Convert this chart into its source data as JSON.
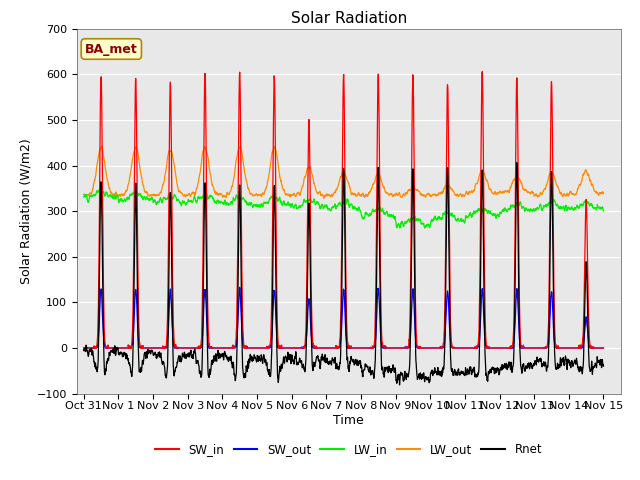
{
  "title": "Solar Radiation",
  "ylabel": "Solar Radiation (W/m2)",
  "xlabel": "Time",
  "xlim_days": [
    -0.2,
    15.5
  ],
  "ylim": [
    -100,
    700
  ],
  "yticks": [
    -100,
    0,
    100,
    200,
    300,
    400,
    500,
    600,
    700
  ],
  "xtick_labels": [
    "Oct 31",
    "Nov 1",
    "Nov 2",
    "Nov 3",
    "Nov 4",
    "Nov 5",
    "Nov 6",
    "Nov 7",
    "Nov 8",
    "Nov 9",
    "Nov 10",
    "Nov 11",
    "Nov 12",
    "Nov 13",
    "Nov 14",
    "Nov 15"
  ],
  "xtick_positions": [
    0,
    1,
    2,
    3,
    4,
    5,
    6,
    7,
    8,
    9,
    10,
    11,
    12,
    13,
    14,
    15
  ],
  "colors": {
    "SW_in": "#ff0000",
    "SW_out": "#0000ff",
    "LW_in": "#00ee00",
    "LW_out": "#ff8c00",
    "Rnet": "#000000"
  },
  "background_color": "#e8e8e8",
  "annotation_text": "BA_met",
  "annotation_bg": "#ffffcc",
  "annotation_border": "#aa8800",
  "title_fontsize": 11,
  "label_fontsize": 9,
  "tick_fontsize": 8
}
